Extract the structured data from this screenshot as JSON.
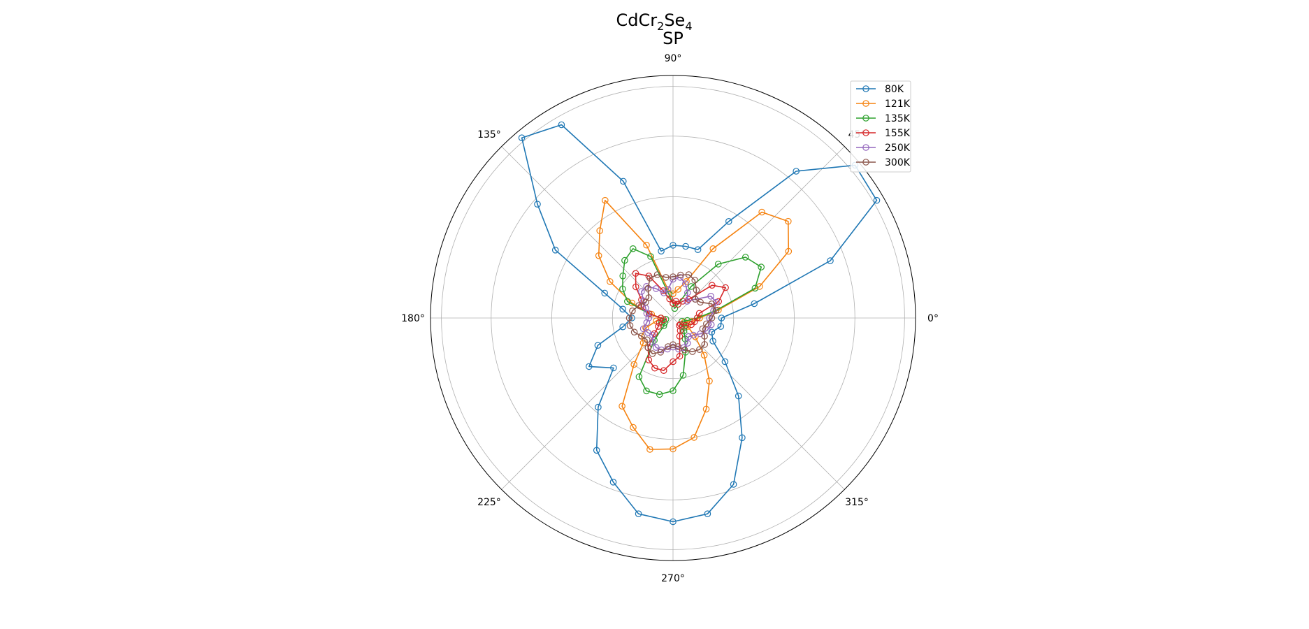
{
  "chart_data": {
    "type": "line",
    "projection": "polar",
    "title_main": "CdCr",
    "title_sub1": "2",
    "title_mid": "Se",
    "title_sub2": "4",
    "title_line2": "SP",
    "angle_ticks": [
      "0°",
      "45°",
      "90°",
      "135°",
      "180°",
      "225°",
      "270°",
      "315°"
    ],
    "radial_max": 1.0,
    "radial_gridlines": [
      0.25,
      0.5,
      0.75,
      1.0
    ],
    "radial_tick_labels": "none",
    "grid": true,
    "legend_placement": "upper-right",
    "marker": "open-circle",
    "angle_step_deg": 10,
    "theta_deg": [
      0,
      10,
      20,
      30,
      40,
      50,
      60,
      70,
      80,
      90,
      100,
      110,
      120,
      130,
      140,
      150,
      160,
      170,
      180,
      190,
      200,
      210,
      220,
      230,
      240,
      250,
      260,
      270,
      280,
      290,
      300,
      310,
      320,
      330,
      340,
      350
    ],
    "series": [
      {
        "name": "80K",
        "color": "#1f77b4",
        "r": [
          0.2,
          0.34,
          0.69,
          0.97,
          0.98,
          0.79,
          0.46,
          0.3,
          0.3,
          0.3,
          0.28,
          0.6,
          0.92,
          0.97,
          0.73,
          0.56,
          0.3,
          0.21,
          0.17,
          0.21,
          0.33,
          0.4,
          0.32,
          0.48,
          0.63,
          0.72,
          0.82,
          0.84,
          0.82,
          0.73,
          0.57,
          0.42,
          0.28,
          0.19,
          0.17,
          0.2
        ]
      },
      {
        "name": "121K",
        "color": "#f5820f",
        "r": [
          0.11,
          0.19,
          0.38,
          0.55,
          0.62,
          0.57,
          0.33,
          0.16,
          0.12,
          0.1,
          0.12,
          0.32,
          0.56,
          0.47,
          0.4,
          0.3,
          0.18,
          0.09,
          0.05,
          0.07,
          0.12,
          0.15,
          0.16,
          0.25,
          0.42,
          0.48,
          0.55,
          0.54,
          0.5,
          0.4,
          0.3,
          0.2,
          0.12,
          0.07,
          0.05,
          0.08
        ]
      },
      {
        "name": "135K",
        "color": "#2ca02c",
        "r": [
          0.1,
          0.18,
          0.36,
          0.42,
          0.39,
          0.29,
          0.15,
          0.06,
          0.04,
          0.06,
          0.1,
          0.27,
          0.33,
          0.31,
          0.27,
          0.24,
          0.2,
          0.1,
          0.05,
          0.03,
          0.05,
          0.04,
          0.05,
          0.12,
          0.28,
          0.32,
          0.32,
          0.3,
          0.24,
          0.15,
          0.1,
          0.07,
          0.06,
          0.05,
          0.04,
          0.06
        ]
      },
      {
        "name": "155K",
        "color": "#d62728",
        "r": [
          0.1,
          0.11,
          0.2,
          0.25,
          0.21,
          0.1,
          0.08,
          0.06,
          0.07,
          0.06,
          0.08,
          0.12,
          0.2,
          0.24,
          0.2,
          0.15,
          0.14,
          0.1,
          0.05,
          0.04,
          0.06,
          0.07,
          0.1,
          0.16,
          0.2,
          0.22,
          0.22,
          0.18,
          0.16,
          0.08,
          0.06,
          0.04,
          0.04,
          0.06,
          0.08,
          0.09
        ]
      },
      {
        "name": "250K",
        "color": "#9467bd",
        "r": [
          0.15,
          0.17,
          0.19,
          0.18,
          0.12,
          0.09,
          0.12,
          0.15,
          0.17,
          0.16,
          0.12,
          0.11,
          0.14,
          0.17,
          0.17,
          0.14,
          0.12,
          0.11,
          0.1,
          0.11,
          0.13,
          0.12,
          0.11,
          0.13,
          0.14,
          0.14,
          0.13,
          0.12,
          0.13,
          0.13,
          0.12,
          0.1,
          0.11,
          0.13,
          0.15,
          0.16
        ]
      },
      {
        "name": "300K",
        "color": "#8c564b",
        "r": [
          0.16,
          0.18,
          0.17,
          0.13,
          0.12,
          0.15,
          0.18,
          0.19,
          0.18,
          0.17,
          0.17,
          0.19,
          0.19,
          0.16,
          0.13,
          0.13,
          0.15,
          0.17,
          0.18,
          0.18,
          0.17,
          0.15,
          0.14,
          0.16,
          0.17,
          0.15,
          0.12,
          0.11,
          0.12,
          0.14,
          0.16,
          0.17,
          0.17,
          0.15,
          0.13,
          0.14
        ]
      }
    ]
  }
}
